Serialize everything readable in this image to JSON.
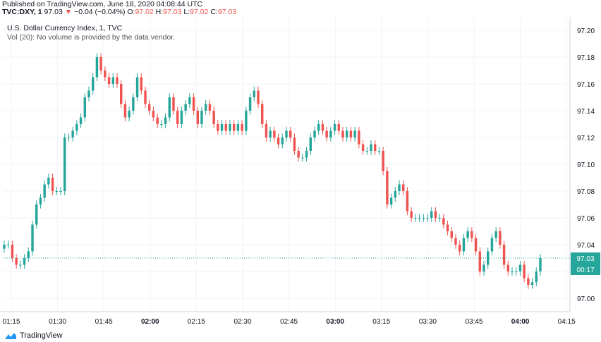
{
  "header": {
    "published": "Published on TradingView.com, June 18, 2020 04:08:44 UTC",
    "symbol": "TVC:DXY, 1",
    "last": "97.03",
    "change_arrow": "▼",
    "change": "−0.04 (−0.04%)",
    "o_label": "O:",
    "o_value": "97.02",
    "h_label": "H:",
    "h_value": "97.03",
    "l_label": "L:",
    "l_value": "97.02",
    "c_label": "C:",
    "c_value": "97.03"
  },
  "legend": {
    "title": "U.S. Dollar Currency Index, 1, TVC",
    "volume_note": "Vol (20): No volume is provided by the data vendor."
  },
  "footer": {
    "logo_text": "TradingView",
    "logo_icon": "tradingview-logo-icon"
  },
  "colors": {
    "up": "#26a69a",
    "down": "#ef5350",
    "grid": "#f0f3fa",
    "axis_text": "#131722",
    "last_price_bg": "#26a69a",
    "last_price_line": "#26a69a"
  },
  "chart_data": {
    "type": "candlestick",
    "interval": "1 minute",
    "ylim": [
      96.99,
      97.21
    ],
    "y_ticks": [
      "97.00",
      "97.02",
      "97.04",
      "97.06",
      "97.08",
      "97.10",
      "97.12",
      "97.14",
      "97.16",
      "97.18",
      "97.20"
    ],
    "x_ticks": [
      {
        "label": "01:15",
        "bold": false
      },
      {
        "label": "01:30",
        "bold": false
      },
      {
        "label": "01:45",
        "bold": false
      },
      {
        "label": "02:00",
        "bold": true
      },
      {
        "label": "02:15",
        "bold": false
      },
      {
        "label": "02:30",
        "bold": false
      },
      {
        "label": "02:45",
        "bold": false
      },
      {
        "label": "03:00",
        "bold": true
      },
      {
        "label": "03:15",
        "bold": false
      },
      {
        "label": "03:30",
        "bold": false
      },
      {
        "label": "03:45",
        "bold": false
      },
      {
        "label": "04:00",
        "bold": true
      },
      {
        "label": "04:15",
        "bold": false
      }
    ],
    "last_price": "97.03",
    "countdown": "00:17",
    "closes": [
      97.04,
      97.04,
      97.03,
      97.025,
      97.025,
      97.03,
      97.035,
      97.055,
      97.07,
      97.075,
      97.085,
      97.09,
      97.08,
      97.08,
      97.08,
      97.12,
      97.12,
      97.125,
      97.13,
      97.135,
      97.15,
      97.155,
      97.165,
      97.18,
      97.17,
      97.165,
      97.16,
      97.165,
      97.16,
      97.145,
      97.135,
      97.14,
      97.15,
      97.165,
      97.155,
      97.145,
      97.14,
      97.135,
      97.13,
      97.13,
      97.135,
      97.15,
      97.14,
      97.13,
      97.14,
      97.145,
      97.15,
      97.14,
      97.13,
      97.14,
      97.145,
      97.14,
      97.13,
      97.125,
      97.13,
      97.125,
      97.13,
      97.125,
      97.13,
      97.125,
      97.14,
      97.15,
      97.155,
      97.145,
      97.13,
      97.12,
      97.125,
      97.12,
      97.115,
      97.12,
      97.125,
      97.12,
      97.11,
      97.105,
      97.105,
      97.11,
      97.12,
      97.125,
      97.13,
      97.125,
      97.12,
      97.125,
      97.13,
      97.125,
      97.12,
      97.125,
      97.12,
      97.125,
      97.115,
      97.11,
      97.11,
      97.115,
      97.11,
      97.11,
      97.095,
      97.07,
      97.075,
      97.08,
      97.085,
      97.08,
      97.065,
      97.06,
      97.06,
      97.06,
      97.06,
      97.06,
      97.065,
      97.06,
      97.06,
      97.055,
      97.05,
      97.045,
      97.04,
      97.035,
      97.045,
      97.05,
      97.045,
      97.035,
      97.02,
      97.025,
      97.035,
      97.045,
      97.05,
      97.04,
      97.025,
      97.02,
      97.02,
      97.02,
      97.025,
      97.015,
      97.01,
      97.012,
      97.02,
      97.03
    ]
  }
}
